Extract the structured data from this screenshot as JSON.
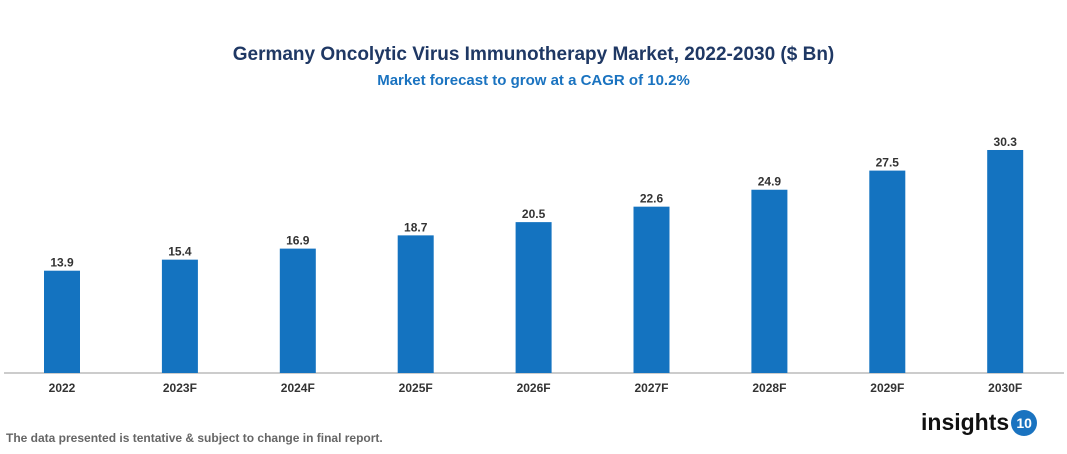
{
  "chart_data": {
    "type": "bar",
    "title": "Germany Oncolytic Virus Immunotherapy Market, 2022-2030 ($ Bn)",
    "subtitle": "Market forecast to grow at a CAGR of 10.2%",
    "categories": [
      "2022",
      "2023F",
      "2024F",
      "2025F",
      "2026F",
      "2027F",
      "2028F",
      "2029F",
      "2030F"
    ],
    "values": [
      13.9,
      15.4,
      16.9,
      18.7,
      20.5,
      22.6,
      24.9,
      27.5,
      30.3
    ],
    "xlabel": "",
    "ylabel": "",
    "ylim": [
      0,
      33
    ],
    "grid": false,
    "bar_color": "#1473c0"
  },
  "footer": {
    "note": "The data presented is tentative & subject to change in final report.",
    "logo_text": "insights",
    "logo_badge": "10"
  }
}
